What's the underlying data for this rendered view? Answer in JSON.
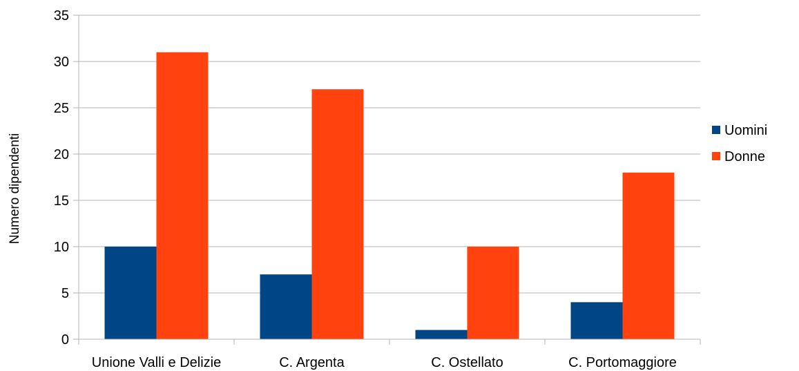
{
  "chart_data": {
    "type": "bar",
    "title": "",
    "xlabel": "",
    "ylabel": "Numero dipendenti",
    "categories": [
      "Unione Valli e Delizie",
      "C. Argenta",
      "C. Ostellato",
      "C. Portomaggiore"
    ],
    "series": [
      {
        "name": "Uomini",
        "color": "#004586",
        "values": [
          10,
          7,
          1,
          4
        ]
      },
      {
        "name": "Donne",
        "color": "#ff420e",
        "values": [
          31,
          27,
          10,
          18
        ]
      }
    ],
    "ylim": [
      0,
      35
    ],
    "yticks": [
      0,
      5,
      10,
      15,
      20,
      25,
      30,
      35
    ],
    "grid": true,
    "legend_position": "right"
  }
}
